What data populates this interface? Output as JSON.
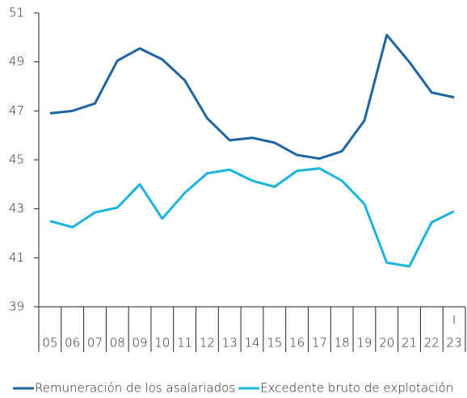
{
  "chart_data": {
    "type": "line",
    "categories": [
      "05",
      "06",
      "07",
      "08",
      "09",
      "10",
      "11",
      "12",
      "13",
      "14",
      "15",
      "16",
      "17",
      "18",
      "19",
      "20",
      "21",
      "22",
      "23"
    ],
    "period_note": "I",
    "series": [
      {
        "name": "Remuneración de los asalariados",
        "color": "#1f64a0",
        "values": [
          46.9,
          47.0,
          47.3,
          49.05,
          49.55,
          49.1,
          48.25,
          46.7,
          45.8,
          45.9,
          45.7,
          45.2,
          45.05,
          45.35,
          46.6,
          50.1,
          49.0,
          47.75,
          47.55
        ]
      },
      {
        "name": "Excedente bruto de explotación",
        "color": "#19b4e0",
        "values": [
          42.5,
          42.25,
          42.85,
          43.05,
          44.0,
          42.6,
          43.65,
          44.45,
          44.6,
          44.15,
          43.9,
          44.55,
          44.65,
          44.15,
          43.2,
          40.8,
          40.65,
          42.45,
          42.9
        ]
      }
    ],
    "ylim": [
      39,
      51
    ],
    "yticks": [
      39,
      41,
      43,
      45,
      47,
      49,
      51
    ],
    "grid": false
  }
}
